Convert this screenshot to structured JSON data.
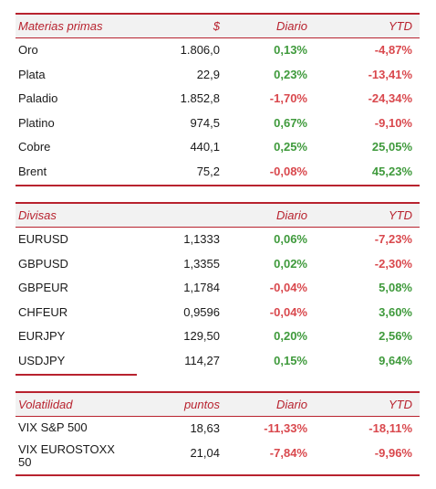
{
  "colors": {
    "accent": "#b8232f",
    "positive": "#3f9a3c",
    "negative": "#d9484d",
    "header_bg": "#f2f2f2"
  },
  "materias": {
    "headers": [
      "Materias primas",
      "$",
      "Diario",
      "YTD"
    ],
    "rows": [
      {
        "name": "Oro",
        "value": "1.806,0",
        "diario": "0,13%",
        "ytd": "-4,87%",
        "diario_sign": "pos",
        "ytd_sign": "neg"
      },
      {
        "name": "Plata",
        "value": "22,9",
        "diario": "0,23%",
        "ytd": "-13,41%",
        "diario_sign": "pos",
        "ytd_sign": "neg"
      },
      {
        "name": "Paladio",
        "value": "1.852,8",
        "diario": "-1,70%",
        "ytd": "-24,34%",
        "diario_sign": "neg",
        "ytd_sign": "neg"
      },
      {
        "name": "Platino",
        "value": "974,5",
        "diario": "0,67%",
        "ytd": "-9,10%",
        "diario_sign": "pos",
        "ytd_sign": "neg"
      },
      {
        "name": "Cobre",
        "value": "440,1",
        "diario": "0,25%",
        "ytd": "25,05%",
        "diario_sign": "pos",
        "ytd_sign": "pos"
      },
      {
        "name": "Brent",
        "value": "75,2",
        "diario": "-0,08%",
        "ytd": "45,23%",
        "diario_sign": "neg",
        "ytd_sign": "pos"
      }
    ]
  },
  "divisas": {
    "headers": [
      "Divisas",
      "",
      "Diario",
      "YTD"
    ],
    "rows": [
      {
        "name": "EURUSD",
        "value": "1,1333",
        "diario": "0,06%",
        "ytd": "-7,23%",
        "diario_sign": "pos",
        "ytd_sign": "neg"
      },
      {
        "name": "GBPUSD",
        "value": "1,3355",
        "diario": "0,02%",
        "ytd": "-2,30%",
        "diario_sign": "pos",
        "ytd_sign": "neg"
      },
      {
        "name": "GBPEUR",
        "value": "1,1784",
        "diario": "-0,04%",
        "ytd": "5,08%",
        "diario_sign": "neg",
        "ytd_sign": "pos"
      },
      {
        "name": "CHFEUR",
        "value": "0,9596",
        "diario": "-0,04%",
        "ytd": "3,60%",
        "diario_sign": "neg",
        "ytd_sign": "pos"
      },
      {
        "name": "EURJPY",
        "value": "129,50",
        "diario": "0,20%",
        "ytd": "2,56%",
        "diario_sign": "pos",
        "ytd_sign": "pos"
      },
      {
        "name": "USDJPY",
        "value": "114,27",
        "diario": "0,15%",
        "ytd": "9,64%",
        "diario_sign": "pos",
        "ytd_sign": "pos"
      }
    ]
  },
  "volatilidad": {
    "headers": [
      "Volatilidad",
      "puntos",
      "Diario",
      "YTD"
    ],
    "rows": [
      {
        "name": "VIX S&P 500",
        "value": "18,63",
        "diario": "-11,33%",
        "ytd": "-18,11%",
        "diario_sign": "neg",
        "ytd_sign": "neg"
      },
      {
        "name": "VIX EUROSTOXX 50",
        "value": "21,04",
        "diario": "-7,84%",
        "ytd": "-9,96%",
        "diario_sign": "neg",
        "ytd_sign": "neg"
      }
    ]
  }
}
